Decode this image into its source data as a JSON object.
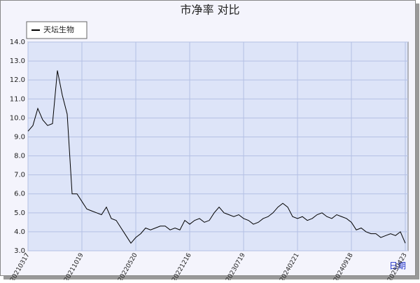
{
  "chart_data": {
    "type": "line",
    "title": "市净率  对比",
    "x_label": "日期",
    "categories": [
      "20210317",
      null,
      null,
      null,
      null,
      null,
      null,
      null,
      null,
      null,
      null,
      "20211019",
      null,
      null,
      null,
      null,
      null,
      null,
      null,
      null,
      null,
      null,
      "20220520",
      null,
      null,
      null,
      null,
      null,
      null,
      null,
      null,
      null,
      null,
      "20221216",
      null,
      null,
      null,
      null,
      null,
      null,
      null,
      null,
      null,
      null,
      "20230719",
      null,
      null,
      null,
      null,
      null,
      null,
      null,
      null,
      null,
      null,
      "20240221",
      null,
      null,
      null,
      null,
      null,
      null,
      null,
      null,
      null,
      null,
      "20240918",
      null,
      null,
      null,
      null,
      null,
      null,
      null,
      null,
      null,
      null,
      "20250423"
    ],
    "series": [
      {
        "name": "天坛生物",
        "color": "#000000",
        "values": [
          9.3,
          9.6,
          10.5,
          9.9,
          9.6,
          9.7,
          12.5,
          11.2,
          10.2,
          6.0,
          6.0,
          5.6,
          5.2,
          5.1,
          5.0,
          4.9,
          5.3,
          4.7,
          4.6,
          4.2,
          3.8,
          3.4,
          3.7,
          3.9,
          4.2,
          4.1,
          4.2,
          4.3,
          4.3,
          4.1,
          4.2,
          4.1,
          4.6,
          4.4,
          4.6,
          4.7,
          4.5,
          4.6,
          5.0,
          5.3,
          5.0,
          4.9,
          4.8,
          4.9,
          4.7,
          4.6,
          4.4,
          4.5,
          4.7,
          4.8,
          5.0,
          5.3,
          5.5,
          5.3,
          4.8,
          4.7,
          4.8,
          4.6,
          4.7,
          4.9,
          5.0,
          4.8,
          4.7,
          4.9,
          4.8,
          4.7,
          4.5,
          4.1,
          4.2,
          4.0,
          3.9,
          3.9,
          3.7,
          3.8,
          3.9,
          3.8,
          4.0,
          3.4
        ]
      }
    ],
    "ylim": [
      3,
      14
    ],
    "yticks": [
      {
        "value": 3,
        "label": "3.0"
      },
      {
        "value": 4,
        "label": "4.0"
      },
      {
        "value": 5,
        "label": "5.0"
      },
      {
        "value": 6,
        "label": "6.0"
      },
      {
        "value": 7,
        "label": "7.0"
      },
      {
        "value": 8,
        "label": "8.0"
      },
      {
        "value": 9,
        "label": "9.0"
      },
      {
        "value": 10,
        "label": "10.0"
      },
      {
        "value": 11,
        "label": "11.0"
      },
      {
        "value": 12,
        "label": "12.0"
      },
      {
        "value": 13,
        "label": "13.0"
      },
      {
        "value": 14,
        "label": "14.0"
      }
    ],
    "grid": true
  }
}
